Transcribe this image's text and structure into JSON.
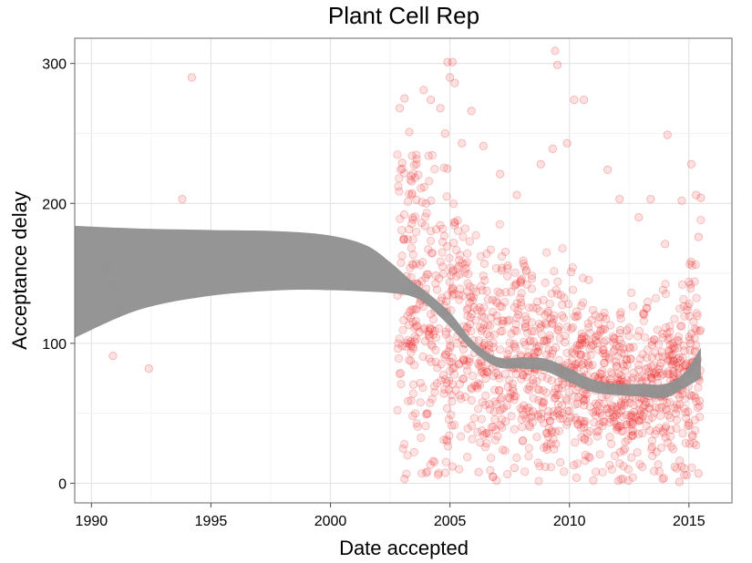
{
  "chart_data": {
    "type": "scatter",
    "title": "Plant Cell Rep",
    "xlabel": "Date accepted",
    "ylabel": "Acceptance delay",
    "xlim": [
      1989.3,
      2016.8
    ],
    "ylim": [
      -14,
      318
    ],
    "xticks": [
      1990,
      1995,
      2000,
      2005,
      2010,
      2015
    ],
    "yticks": [
      0,
      100,
      200,
      300
    ],
    "xtick_labels": [
      "1990",
      "1995",
      "2000",
      "2005",
      "2010",
      "2015"
    ],
    "ytick_labels": [
      "0",
      "100",
      "200",
      "300"
    ],
    "grid": true,
    "legend": "none",
    "point_color": "#ee2222",
    "band_color": "#8f8f8f",
    "points": [
      [
        1990.7,
        153
      ],
      [
        1990.9,
        141
      ],
      [
        1991.1,
        122
      ],
      [
        1990.9,
        91
      ],
      [
        1992.4,
        82
      ],
      [
        1993.8,
        203
      ],
      [
        1994.2,
        290
      ],
      [
        2002.9,
        268
      ],
      [
        2003.1,
        275
      ],
      [
        2003.0,
        229
      ],
      [
        2003.3,
        251
      ],
      [
        2003.6,
        228
      ],
      [
        2003.9,
        281
      ],
      [
        2004.2,
        274
      ],
      [
        2004.6,
        268
      ],
      [
        2004.9,
        301
      ],
      [
        2005.1,
        301
      ],
      [
        2005.0,
        290
      ],
      [
        2005.2,
        286
      ],
      [
        2004.8,
        250
      ],
      [
        2005.5,
        243
      ],
      [
        2005.9,
        266
      ],
      [
        2006.4,
        241
      ],
      [
        2007.1,
        221
      ],
      [
        2007.8,
        206
      ],
      [
        2008.8,
        228
      ],
      [
        2009.3,
        239
      ],
      [
        2009.4,
        309
      ],
      [
        2009.5,
        299
      ],
      [
        2009.9,
        243
      ],
      [
        2010.2,
        274
      ],
      [
        2010.6,
        274
      ],
      [
        2011.6,
        224
      ],
      [
        2012.1,
        203
      ],
      [
        2012.9,
        190
      ],
      [
        2013.4,
        203
      ],
      [
        2014.0,
        171
      ],
      [
        2014.1,
        249
      ],
      [
        2014.7,
        202
      ],
      [
        2015.1,
        228
      ],
      [
        2015.3,
        206
      ],
      [
        2015.4,
        176
      ],
      [
        2015.5,
        204
      ],
      [
        2005.1,
        12
      ],
      [
        2006.2,
        8
      ],
      [
        2007.7,
        11
      ],
      [
        2003.1,
        3
      ],
      [
        2004.5,
        6
      ],
      [
        2010.3,
        4
      ],
      [
        2011.0,
        2
      ],
      [
        2013.9,
        3
      ],
      [
        2014.6,
        1
      ],
      [
        2015.4,
        7
      ]
    ],
    "band": {
      "x": [
        1989.3,
        1992,
        1995,
        1998,
        2000,
        2001.5,
        2002.5,
        2003.3,
        2004,
        2005,
        2006,
        2007,
        2008,
        2009,
        2010,
        2011,
        2012,
        2013,
        2014,
        2014.8,
        2015.5
      ],
      "lower": [
        104,
        124,
        134,
        138,
        138,
        137,
        136,
        134,
        128,
        112,
        94,
        83,
        82,
        80,
        72,
        65,
        63,
        62,
        61,
        68,
        75
      ],
      "upper": [
        184,
        182,
        181,
        180,
        177,
        170,
        158,
        146,
        137,
        122,
        101,
        90,
        90,
        89,
        82,
        74,
        71,
        71,
        71,
        79,
        97
      ]
    }
  }
}
